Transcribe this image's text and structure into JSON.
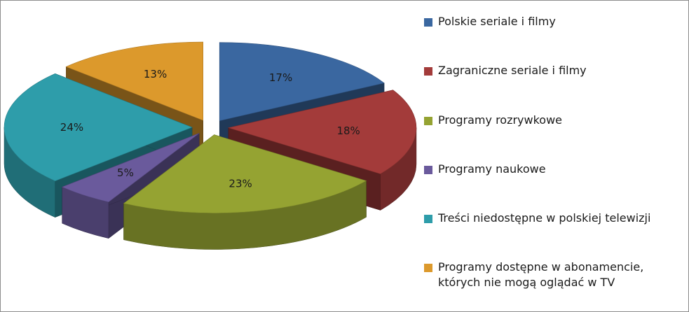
{
  "chart_data": {
    "type": "pie",
    "title": "",
    "categories": [
      "Polskie seriale i filmy",
      "Zagraniczne seriale i filmy",
      "Programy rozrywkowe",
      "Programy naukowe",
      "Treści niedostępne w polskiej telewizji",
      "Programy dostępne w abonamencie, których nie mogą oglądać w TV"
    ],
    "values": [
      17,
      18,
      23,
      5,
      24,
      13
    ],
    "labels": [
      "17%",
      "18%",
      "23%",
      "5%",
      "24%",
      "13%"
    ],
    "colors": [
      "#3A67A0",
      "#A33B3A",
      "#95A332",
      "#6A5A9C",
      "#2E9DAA",
      "#DC992C"
    ],
    "legend_position": "right",
    "exploded": true,
    "three_d": true
  }
}
